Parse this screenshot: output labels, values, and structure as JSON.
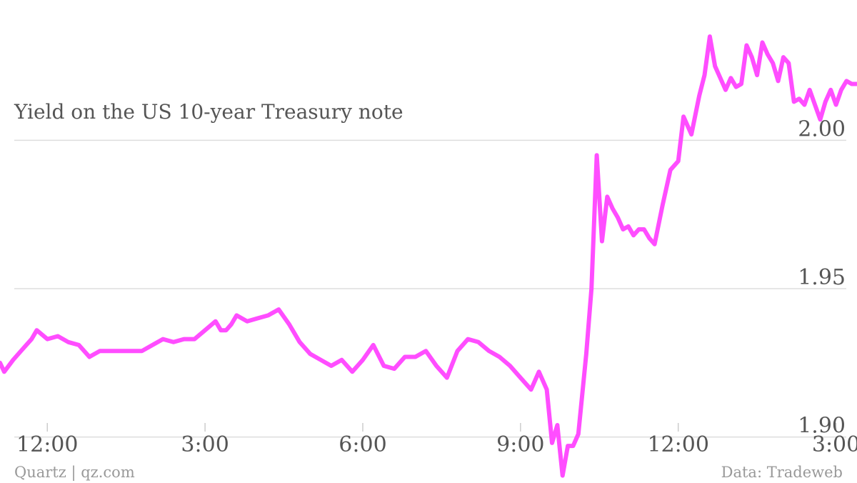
{
  "chart_data": {
    "type": "line",
    "title": "Yield on the US 10-year Treasury note",
    "xlabel": "",
    "ylabel": "",
    "y_ticks": [
      "2.00",
      "1.95",
      "1.90"
    ],
    "y_tick_values": [
      2.0,
      1.95,
      1.9
    ],
    "x_ticks": [
      "12:00",
      "3:00",
      "6:00",
      "9:00",
      "12:00",
      "3:00"
    ],
    "x_tick_values": [
      0,
      3,
      6,
      9,
      12,
      15
    ],
    "xlim": [
      -0.9,
      15.4
    ],
    "ylim": [
      1.8845,
      2.0473
    ],
    "grid": "horizontal",
    "line_color": "#ff4dff",
    "series": [
      {
        "x": [
          -0.9,
          -0.82,
          -0.65,
          -0.5,
          -0.4,
          -0.3,
          -0.2,
          0.0,
          0.2,
          0.4,
          0.6,
          0.8,
          1.0,
          1.2,
          1.4,
          1.6,
          1.8,
          2.0,
          2.2,
          2.4,
          2.6,
          2.8,
          3.0,
          3.2,
          3.3,
          3.4,
          3.5,
          3.6,
          3.8,
          4.0,
          4.2,
          4.4,
          4.6,
          4.8,
          5.0,
          5.2,
          5.4,
          5.6,
          5.8,
          6.0,
          6.2,
          6.4,
          6.6,
          6.8,
          7.0,
          7.2,
          7.4,
          7.6,
          7.8,
          8.0,
          8.2,
          8.4,
          8.6,
          8.8,
          9.0,
          9.2,
          9.35,
          9.5,
          9.6,
          9.7,
          9.8,
          9.9,
          10.0,
          10.1,
          10.15,
          10.25,
          10.35,
          10.45,
          10.55,
          10.65,
          10.75,
          10.85,
          10.95,
          11.05,
          11.15,
          11.25,
          11.35,
          11.45,
          11.55,
          11.7,
          11.85,
          12.0,
          12.1,
          12.25,
          12.4,
          12.5,
          12.6,
          12.7,
          12.8,
          12.9,
          13.0,
          13.1,
          13.2,
          13.3,
          13.4,
          13.5,
          13.6,
          13.7,
          13.8,
          13.9,
          14.0,
          14.1,
          14.2,
          14.3,
          14.4,
          14.5,
          14.6,
          14.7,
          14.8,
          14.9,
          15.0,
          15.1,
          15.2,
          15.3,
          15.4,
          15.52
        ],
        "y": [
          1.925,
          1.922,
          1.926,
          1.929,
          1.931,
          1.933,
          1.936,
          1.933,
          1.934,
          1.932,
          1.931,
          1.927,
          1.929,
          1.929,
          1.929,
          1.929,
          1.929,
          1.931,
          1.933,
          1.932,
          1.933,
          1.933,
          1.936,
          1.939,
          1.936,
          1.936,
          1.938,
          1.941,
          1.939,
          1.94,
          1.941,
          1.943,
          1.938,
          1.932,
          1.928,
          1.926,
          1.924,
          1.926,
          1.922,
          1.926,
          1.931,
          1.924,
          1.923,
          1.927,
          1.927,
          1.929,
          1.924,
          1.92,
          1.929,
          1.933,
          1.932,
          1.929,
          1.927,
          1.924,
          1.92,
          1.916,
          1.922,
          1.916,
          1.898,
          1.904,
          1.887,
          1.897,
          1.897,
          1.901,
          1.91,
          1.928,
          1.95,
          1.995,
          1.966,
          1.981,
          1.977,
          1.974,
          1.97,
          1.971,
          1.968,
          1.97,
          1.97,
          1.967,
          1.965,
          1.978,
          1.99,
          1.993,
          2.008,
          2.002,
          2.015,
          2.022,
          2.035,
          2.025,
          2.021,
          2.017,
          2.021,
          2.018,
          2.019,
          2.032,
          2.028,
          2.022,
          2.033,
          2.029,
          2.026,
          2.02,
          2.028,
          2.026,
          2.013,
          2.014,
          2.012,
          2.017,
          2.012,
          2.007,
          2.013,
          2.017,
          2.012,
          2.017,
          2.02,
          2.019,
          2.019,
          2.019
        ]
      }
    ]
  },
  "footer": {
    "source_left": "Quartz | qz.com",
    "source_right": "Data: Tradeweb"
  }
}
